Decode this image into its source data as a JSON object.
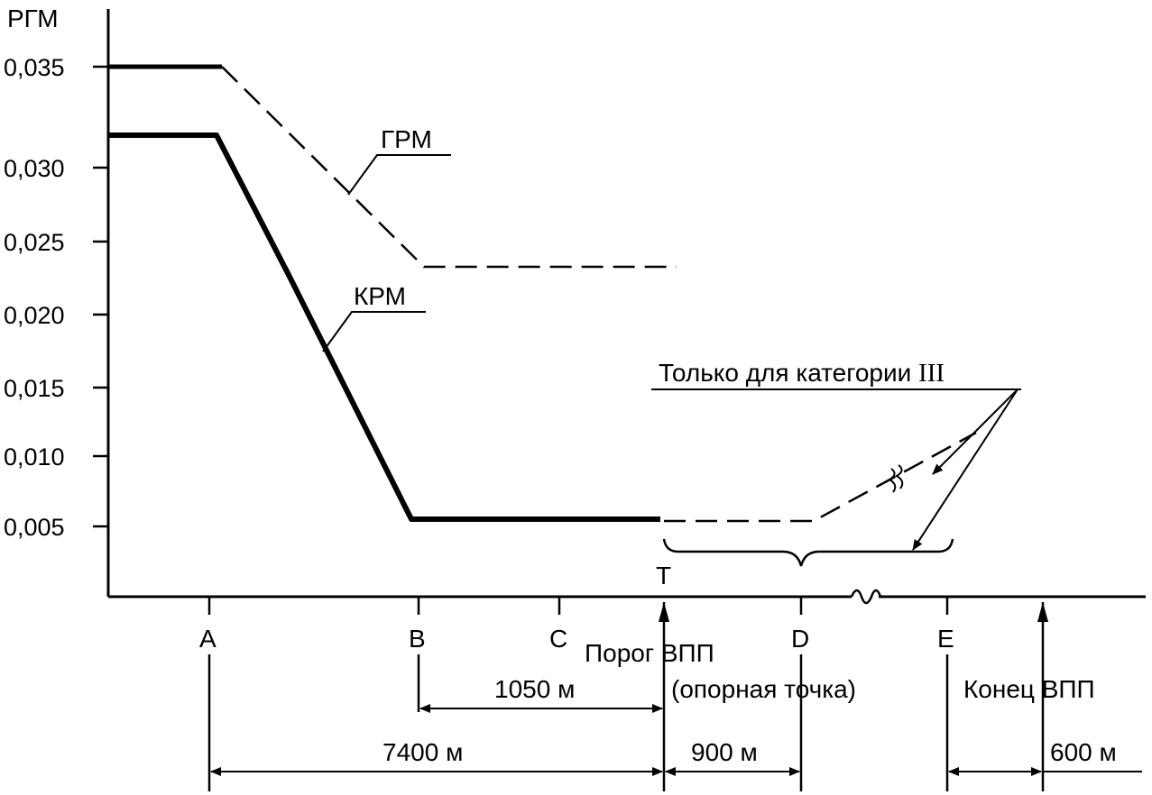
{
  "y_axis": {
    "title": "РГМ",
    "ticks": [
      "0,035",
      "0,030",
      "0,025",
      "0,020",
      "0,015",
      "0,010",
      "0,005"
    ]
  },
  "x_points": {
    "a": "A",
    "b": "B",
    "c": "C",
    "t": "T",
    "d": "D",
    "e": "E"
  },
  "curves": {
    "grm": "ГРМ",
    "krm": "КРМ"
  },
  "cat3_note": {
    "text_main": "Только для категории ",
    "roman": "III"
  },
  "threshold": {
    "line1": "Порог ВПП",
    "line2": "(опорная точка)"
  },
  "runway_end": "Конец ВПП",
  "dimensions": {
    "b_to_t": "1050 м",
    "a_to_t": "7400 м",
    "t_to_d": "900 м",
    "e_to_end": "600 м"
  }
}
